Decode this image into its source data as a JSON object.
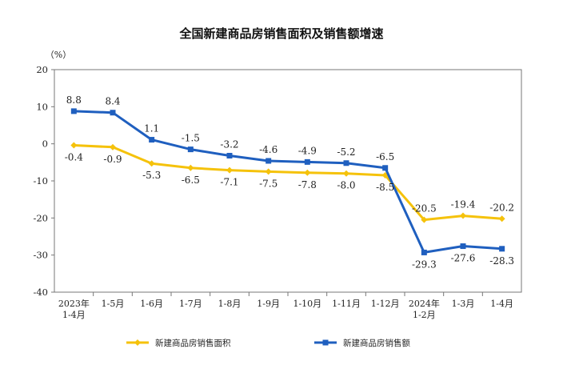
{
  "chart_data": {
    "type": "line",
    "title": "全国新建商品房销售面积及销售额增速",
    "ylabel": "（%）",
    "xlabel": "",
    "ylim": [
      -40,
      20
    ],
    "yticks": [
      20,
      10,
      0,
      -10,
      -20,
      -30,
      -40
    ],
    "grid": false,
    "legend_position": "bottom",
    "categories": [
      [
        "2023年",
        "1-4月"
      ],
      [
        "1-5月"
      ],
      [
        "1-6月"
      ],
      [
        "1-7月"
      ],
      [
        "1-8月"
      ],
      [
        "1-9月"
      ],
      [
        "1-10月"
      ],
      [
        "1-11月"
      ],
      [
        "1-12月"
      ],
      [
        "2024年",
        "1-2月"
      ],
      [
        "1-3月"
      ],
      [
        "1-4月"
      ]
    ],
    "series": [
      {
        "name": "新建商品房销售面积",
        "color": "#F5C20B",
        "values": [
          -0.4,
          -0.9,
          -5.3,
          -6.5,
          -7.1,
          -7.5,
          -7.8,
          -8.0,
          -8.5,
          -20.5,
          -19.4,
          -20.2
        ],
        "labels": [
          "-0.4",
          "-0.9",
          "-5.3",
          "-6.5",
          "-7.1",
          "-7.5",
          "-7.8",
          "-8.0",
          "-8.5",
          "-20.5",
          "-19.4",
          "-20.2"
        ]
      },
      {
        "name": "新建商品房销售额",
        "color": "#1F5FBF",
        "values": [
          8.8,
          8.4,
          1.1,
          -1.5,
          -3.2,
          -4.6,
          -4.9,
          -5.2,
          -6.5,
          -29.3,
          -27.6,
          -28.3
        ],
        "labels": [
          "8.8",
          "8.4",
          "1.1",
          "-1.5",
          "-3.2",
          "-4.6",
          "-4.9",
          "-5.2",
          "-6.5",
          "-29.3",
          "-27.6",
          "-28.3"
        ]
      }
    ]
  }
}
